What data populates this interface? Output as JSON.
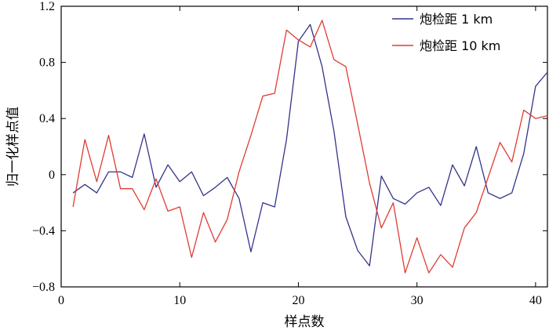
{
  "chart_data": {
    "type": "line",
    "xlabel": "样点数",
    "ylabel": "归一化样点值",
    "xlim": [
      0,
      41
    ],
    "ylim": [
      -0.8,
      1.2
    ],
    "x_ticks": [
      0,
      10,
      20,
      30,
      40
    ],
    "y_ticks": [
      -0.8,
      -0.4,
      0,
      0.4,
      0.8,
      1.2
    ],
    "x_tick_labels": [
      "0",
      "10",
      "20",
      "30",
      "40"
    ],
    "y_tick_labels": [
      "−0.8",
      "−0.4",
      "0",
      "0.4",
      "0.8",
      "1.2"
    ],
    "grid": false,
    "legend_position": "top-right",
    "x": [
      1,
      2,
      3,
      4,
      5,
      6,
      7,
      8,
      9,
      10,
      11,
      12,
      13,
      14,
      15,
      16,
      17,
      18,
      19,
      20,
      21,
      22,
      23,
      24,
      25,
      26,
      27,
      28,
      29,
      30,
      31,
      32,
      33,
      34,
      35,
      36,
      37,
      38,
      39,
      40,
      41
    ],
    "series": [
      {
        "name": "炮检距 1 km",
        "color": "#33338a",
        "values": [
          -0.13,
          -0.07,
          -0.13,
          0.02,
          0.02,
          -0.02,
          0.29,
          -0.09,
          0.07,
          -0.05,
          0.02,
          -0.15,
          -0.09,
          -0.02,
          -0.17,
          -0.55,
          -0.2,
          -0.23,
          0.25,
          0.95,
          1.07,
          0.77,
          0.31,
          -0.3,
          -0.54,
          -0.65,
          -0.01,
          -0.17,
          -0.21,
          -0.13,
          -0.09,
          -0.22,
          0.07,
          -0.08,
          0.2,
          -0.13,
          -0.17,
          -0.13,
          0.15,
          0.63,
          0.73
        ]
      },
      {
        "name": "炮检距 10 km",
        "color": "#e03c32",
        "values": [
          -0.23,
          0.25,
          -0.05,
          0.28,
          -0.1,
          -0.1,
          -0.25,
          -0.03,
          -0.26,
          -0.23,
          -0.59,
          -0.27,
          -0.48,
          -0.32,
          0.02,
          0.28,
          0.56,
          0.58,
          1.03,
          0.96,
          0.91,
          1.1,
          0.82,
          0.77,
          0.36,
          -0.06,
          -0.38,
          -0.2,
          -0.7,
          -0.45,
          -0.7,
          -0.57,
          -0.66,
          -0.38,
          -0.27,
          -0.02,
          0.23,
          0.09,
          0.46,
          0.4,
          0.42
        ]
      }
    ]
  }
}
